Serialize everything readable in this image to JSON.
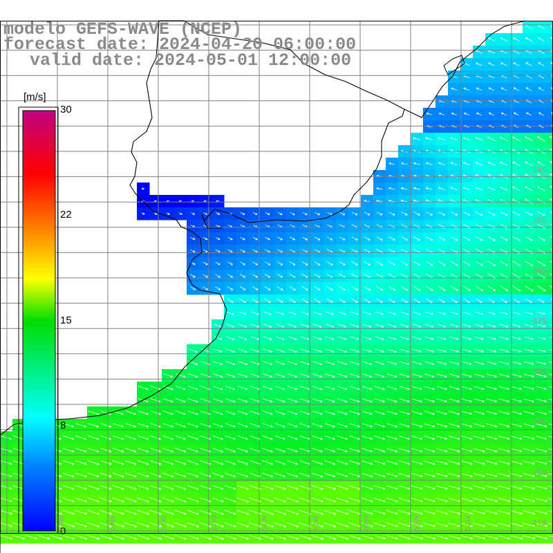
{
  "title": {
    "line1": "modelo GEFS-WAVE (NCEP)",
    "line2": "forecast date: 2024-04-20 06:00:00",
    "line3": "valid date: 2024-05-01 12:00:00"
  },
  "colorbar": {
    "unit": "[m/s]",
    "ticks": [
      {
        "label": "30",
        "value": 30
      },
      {
        "label": "22",
        "value": 22
      },
      {
        "label": "15",
        "value": 15
      },
      {
        "label": "8",
        "value": 8
      },
      {
        "label": "0",
        "value": 0
      }
    ],
    "colors": [
      "#0000ff",
      "#0077ff",
      "#00ffff",
      "#00ff00",
      "#ffff00",
      "#ff8000",
      "#ff0000",
      "#c00080"
    ]
  },
  "map": {
    "lat_labels": [
      "34S",
      "35S",
      "36S",
      "37S",
      "38S",
      "39S",
      "40S",
      "41S"
    ],
    "lon_labels": [
      "60W",
      "59W",
      "58W",
      "57W",
      "56W",
      "55W",
      "54W",
      "53W",
      "52W"
    ],
    "land_color": "#ffffff",
    "grid_color": "#7f7f7f"
  }
}
